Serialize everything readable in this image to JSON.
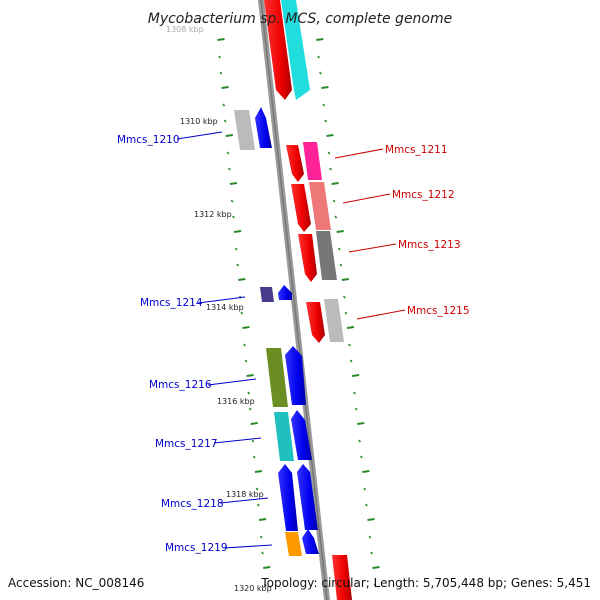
{
  "title": "Mycobacterium sp. MCS, complete genome",
  "footer": {
    "accession": "Accession: NC_008146",
    "topology": "Topology: circular; Length: 5,705,448 bp; Genes: 5,451"
  },
  "kbp_labels": [
    "1308 kbp",
    "1310 kbp",
    "1312 kbp",
    "1314 kbp",
    "1316 kbp",
    "1318 kbp",
    "1320 kbp"
  ],
  "gene_labels": [
    {
      "name": "Mmcs_1210",
      "color": "#0000cc"
    },
    {
      "name": "Mmcs_1211",
      "color": "#cc0000"
    },
    {
      "name": "Mmcs_1212",
      "color": "#cc0000"
    },
    {
      "name": "Mmcs_1213",
      "color": "#cc0000"
    },
    {
      "name": "Mmcs_1214",
      "color": "#0000cc"
    },
    {
      "name": "Mmcs_1215",
      "color": "#cc0000"
    },
    {
      "name": "Mmcs_1216",
      "color": "#0000cc"
    },
    {
      "name": "Mmcs_1217",
      "color": "#0000cc"
    },
    {
      "name": "Mmcs_1218",
      "color": "#0000cc"
    },
    {
      "name": "Mmcs_1219",
      "color": "#0000cc"
    }
  ],
  "colors": {
    "backbone": "#8a8a8a",
    "tick": "#2a8a2a",
    "forward_strand": "#0000ee",
    "reverse_strand": "#ee0000",
    "cog_cyan": "#22dddd",
    "cog_pink": "#ff2299",
    "cog_salmon": "#ee7777",
    "cog_dark_gray": "#777777",
    "cog_light_gray": "#bbbbbb",
    "cog_navy": "#4a3c8c",
    "cog_olive": "#6b8e23",
    "cog_teal": "#20c0c0",
    "cog_orange": "#ff9900"
  }
}
